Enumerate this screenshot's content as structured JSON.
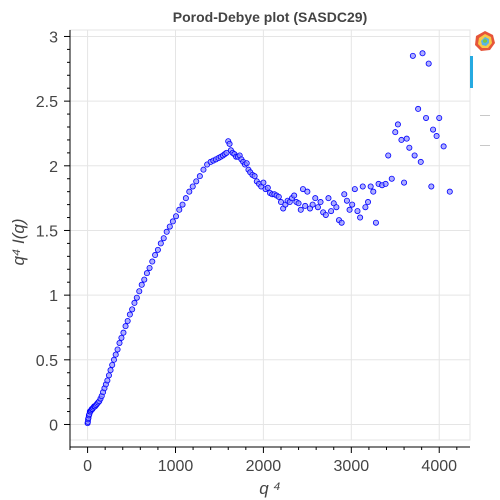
{
  "chart_data": {
    "type": "scatter",
    "title": "Porod-Debye plot (SASDC29)",
    "xlabel": "q ⁴",
    "ylabel": "q⁴ I(q)",
    "xlim": [
      -200,
      4350
    ],
    "ylim": [
      -0.12,
      3.05
    ],
    "xticks": [
      0,
      1000,
      2000,
      3000,
      4000
    ],
    "xtick_labels": [
      "0",
      "1000",
      "2000",
      "3000",
      "4000"
    ],
    "yticks": [
      0,
      0.5,
      1,
      1.5,
      2,
      2.5,
      3
    ],
    "ytick_labels": [
      "0",
      "0.5",
      "1",
      "1.5",
      "2",
      "2.5",
      "3"
    ],
    "grid": true,
    "marker_color": "#0000ff",
    "marker_fill": "#8c8cff",
    "points": {
      "x": [
        0,
        3,
        6,
        10,
        15,
        20,
        26,
        33,
        40,
        48,
        56,
        65,
        75,
        85,
        96,
        108,
        120,
        133,
        147,
        161,
        176,
        192,
        208,
        225,
        243,
        261,
        280,
        300,
        320,
        341,
        363,
        385,
        408,
        432,
        456,
        481,
        507,
        533,
        560,
        588,
        616,
        645,
        675,
        705,
        736,
        768,
        800,
        833,
        866,
        900,
        935,
        970,
        1006,
        1043,
        1080,
        1118,
        1157,
        1196,
        1236,
        1277,
        1318,
        1360,
        1400,
        1430,
        1460,
        1490,
        1515,
        1540,
        1560,
        1580,
        1600,
        1615,
        1630,
        1650,
        1670,
        1690,
        1710,
        1730,
        1750,
        1770,
        1790,
        1810,
        1830,
        1850,
        1875,
        1900,
        1925,
        1950,
        1975,
        2000,
        2025,
        2050,
        2075,
        2100,
        2125,
        2150,
        2175,
        2200,
        2225,
        2250,
        2275,
        2300,
        2325,
        2350,
        2375,
        2400,
        2425,
        2450,
        2475,
        2500,
        2530,
        2560,
        2590,
        2620,
        2650,
        2680,
        2710,
        2740,
        2770,
        2800,
        2830,
        2860,
        2890,
        2920,
        2950,
        2980,
        3010,
        3040,
        3070,
        3100,
        3130,
        3160,
        3190,
        3220,
        3250,
        3280,
        3310,
        3350,
        3390,
        3420,
        3460,
        3500,
        3530,
        3570,
        3600,
        3630,
        3660,
        3700,
        3720,
        3760,
        3790,
        3810,
        3850,
        3880,
        3910,
        3930,
        3970,
        4000,
        4050,
        4120
      ],
      "y": [
        0.01,
        0.02,
        0.04,
        0.05,
        0.07,
        0.08,
        0.1,
        0.1,
        0.11,
        0.12,
        0.12,
        0.13,
        0.14,
        0.14,
        0.15,
        0.16,
        0.17,
        0.18,
        0.2,
        0.22,
        0.25,
        0.28,
        0.31,
        0.34,
        0.38,
        0.42,
        0.46,
        0.5,
        0.54,
        0.58,
        0.63,
        0.67,
        0.71,
        0.76,
        0.8,
        0.85,
        0.89,
        0.94,
        0.98,
        1.03,
        1.08,
        1.12,
        1.17,
        1.21,
        1.26,
        1.31,
        1.35,
        1.4,
        1.44,
        1.49,
        1.53,
        1.57,
        1.61,
        1.66,
        1.7,
        1.75,
        1.8,
        1.84,
        1.88,
        1.92,
        1.97,
        2.01,
        2.03,
        2.04,
        2.05,
        2.06,
        2.07,
        2.08,
        2.09,
        2.1,
        2.19,
        2.17,
        2.12,
        2.1,
        2.09,
        2.07,
        2.07,
        2.08,
        2.05,
        2.03,
        2.01,
        2.02,
        1.97,
        1.95,
        1.93,
        1.92,
        1.88,
        1.86,
        1.84,
        1.87,
        1.82,
        1.83,
        1.79,
        1.78,
        1.78,
        1.77,
        1.76,
        1.72,
        1.67,
        1.7,
        1.73,
        1.72,
        1.75,
        1.77,
        1.72,
        1.71,
        1.66,
        1.82,
        1.69,
        1.8,
        1.67,
        1.7,
        1.75,
        1.68,
        1.72,
        1.64,
        1.62,
        1.75,
        1.65,
        1.71,
        1.68,
        1.58,
        1.56,
        1.78,
        1.73,
        1.66,
        1.7,
        1.82,
        1.65,
        1.6,
        1.84,
        1.68,
        1.72,
        1.84,
        1.8,
        1.56,
        1.86,
        1.85,
        1.86,
        2.08,
        1.9,
        2.26,
        2.32,
        2.2,
        1.87,
        2.21,
        2.14,
        2.85,
        2.08,
        2.44,
        2.03,
        2.87,
        2.37,
        2.79,
        1.84,
        2.28,
        2.23,
        2.37,
        2.15,
        1.8
      ]
    }
  },
  "toolbar": {
    "icons": [
      "bokeh-logo-icon",
      "pan-tool-icon",
      "zoom-tool-icon",
      "reset-tool-icon"
    ]
  }
}
